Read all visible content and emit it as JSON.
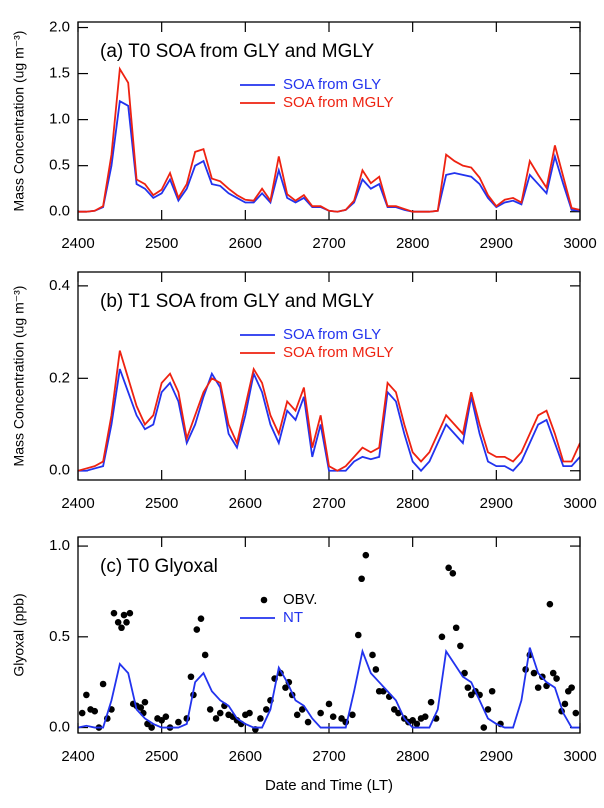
{
  "chart_data": [
    {
      "type": "line",
      "title": "(a) T0 SOA from GLY and MGLY",
      "ylabel": "Mass Concentration (ug m⁻³)",
      "xlim": [
        2400,
        3000
      ],
      "xticks": [
        2400,
        2500,
        2600,
        2700,
        2800,
        2900,
        3000
      ],
      "ylim": [
        -0.09,
        2.06
      ],
      "yticks": [
        {
          "value": 0,
          "label": "0.0"
        },
        0.5,
        {
          "value": 1,
          "label": "1.0"
        },
        1.5,
        {
          "value": 2,
          "label": "2.0"
        }
      ],
      "x": [
        2400,
        2410,
        2420,
        2430,
        2440,
        2450,
        2460,
        2470,
        2480,
        2490,
        2500,
        2510,
        2520,
        2530,
        2540,
        2550,
        2560,
        2570,
        2580,
        2590,
        2600,
        2610,
        2620,
        2630,
        2640,
        2650,
        2660,
        2670,
        2680,
        2690,
        2700,
        2710,
        2720,
        2730,
        2740,
        2750,
        2760,
        2770,
        2780,
        2790,
        2800,
        2810,
        2820,
        2830,
        2840,
        2850,
        2860,
        2870,
        2880,
        2890,
        2900,
        2910,
        2920,
        2930,
        2940,
        2950,
        2960,
        2970,
        2980,
        2990,
        3000
      ],
      "series": [
        {
          "name": "SOA from GLY",
          "color": "#2233ee",
          "values": [
            0,
            0,
            0.01,
            0.05,
            0.5,
            1.2,
            1.15,
            0.3,
            0.25,
            0.15,
            0.2,
            0.35,
            0.12,
            0.25,
            0.5,
            0.55,
            0.3,
            0.28,
            0.2,
            0.15,
            0.1,
            0.1,
            0.2,
            0.1,
            0.45,
            0.15,
            0.1,
            0.15,
            0.05,
            0.05,
            0.01,
            0,
            0.02,
            0.1,
            0.35,
            0.25,
            0.3,
            0.05,
            0.05,
            0.02,
            0,
            0,
            0,
            0.01,
            0.4,
            0.42,
            0.4,
            0.38,
            0.3,
            0.15,
            0.05,
            0.1,
            0.12,
            0.08,
            0.4,
            0.3,
            0.2,
            0.6,
            0.3,
            0.02,
            0.01
          ]
        },
        {
          "name": "SOA from MGLY",
          "color": "#ee2211",
          "values": [
            0,
            0,
            0.01,
            0.06,
            0.62,
            1.55,
            1.4,
            0.35,
            0.3,
            0.18,
            0.24,
            0.42,
            0.15,
            0.3,
            0.65,
            0.68,
            0.36,
            0.33,
            0.25,
            0.18,
            0.13,
            0.12,
            0.25,
            0.12,
            0.6,
            0.19,
            0.12,
            0.18,
            0.06,
            0.06,
            0.01,
            0,
            0.02,
            0.12,
            0.45,
            0.31,
            0.38,
            0.06,
            0.06,
            0.03,
            0,
            0,
            0,
            0.01,
            0.62,
            0.55,
            0.5,
            0.48,
            0.37,
            0.18,
            0.06,
            0.13,
            0.15,
            0.1,
            0.55,
            0.4,
            0.26,
            0.72,
            0.38,
            0.04,
            0.02
          ]
        }
      ]
    },
    {
      "type": "line",
      "title": "(b) T1 SOA from GLY and MGLY",
      "ylabel": "Mass Concentration (ug m⁻³)",
      "xlim": [
        2400,
        3000
      ],
      "xticks": [
        2400,
        2500,
        2600,
        2700,
        2800,
        2900,
        3000
      ],
      "ylim": [
        -0.02,
        0.43
      ],
      "yticks": [
        {
          "value": 0,
          "label": "0.0"
        },
        0.2,
        0.4
      ],
      "x": [
        2400,
        2410,
        2420,
        2430,
        2440,
        2450,
        2460,
        2470,
        2480,
        2490,
        2500,
        2510,
        2520,
        2530,
        2540,
        2550,
        2560,
        2570,
        2580,
        2590,
        2600,
        2610,
        2620,
        2630,
        2640,
        2650,
        2660,
        2670,
        2680,
        2690,
        2700,
        2710,
        2720,
        2730,
        2740,
        2750,
        2760,
        2770,
        2780,
        2790,
        2800,
        2810,
        2820,
        2830,
        2840,
        2850,
        2860,
        2870,
        2880,
        2890,
        2900,
        2910,
        2920,
        2930,
        2940,
        2950,
        2960,
        2970,
        2980,
        2990,
        3000
      ],
      "series": [
        {
          "name": "SOA from GLY",
          "color": "#2233ee",
          "values": [
            0,
            0,
            0.005,
            0.01,
            0.1,
            0.22,
            0.17,
            0.12,
            0.09,
            0.1,
            0.17,
            0.19,
            0.15,
            0.06,
            0.1,
            0.16,
            0.21,
            0.18,
            0.08,
            0.05,
            0.12,
            0.21,
            0.17,
            0.1,
            0.06,
            0.13,
            0.11,
            0.16,
            0.03,
            0.1,
            0,
            0,
            0,
            0.02,
            0.03,
            0.025,
            0.03,
            0.17,
            0.15,
            0.08,
            0.02,
            0,
            0.02,
            0.06,
            0.1,
            0.08,
            0.06,
            0.16,
            0.08,
            0.02,
            0.01,
            0.01,
            0,
            0.02,
            0.06,
            0.1,
            0.11,
            0.06,
            0.01,
            0.01,
            0.03
          ]
        },
        {
          "name": "SOA from MGLY",
          "color": "#ee2211",
          "values": [
            0,
            0.005,
            0.01,
            0.02,
            0.12,
            0.26,
            0.2,
            0.14,
            0.1,
            0.12,
            0.19,
            0.21,
            0.17,
            0.07,
            0.12,
            0.17,
            0.2,
            0.19,
            0.1,
            0.06,
            0.14,
            0.22,
            0.19,
            0.12,
            0.08,
            0.15,
            0.13,
            0.18,
            0.05,
            0.12,
            0.01,
            0,
            0.01,
            0.03,
            0.05,
            0.04,
            0.05,
            0.19,
            0.17,
            0.1,
            0.04,
            0.02,
            0.04,
            0.08,
            0.12,
            0.1,
            0.08,
            0.17,
            0.1,
            0.04,
            0.03,
            0.03,
            0.02,
            0.04,
            0.08,
            0.12,
            0.13,
            0.08,
            0.02,
            0.02,
            0.06
          ]
        }
      ]
    },
    {
      "type": "line",
      "title": "(c) T0 Glyoxal",
      "ylabel": "Glyoxal (ppb)",
      "xlabel": "Date and Time (LT)",
      "xlim": [
        2400,
        3000
      ],
      "xticks": [
        2400,
        2500,
        2600,
        2700,
        2800,
        2900,
        3000
      ],
      "ylim": [
        -0.03,
        1.05
      ],
      "yticks": [
        {
          "value": 0,
          "label": "0.0"
        },
        0.5,
        {
          "value": 1,
          "label": "1.0"
        }
      ],
      "x": [
        2400,
        2410,
        2420,
        2430,
        2440,
        2450,
        2460,
        2470,
        2480,
        2490,
        2500,
        2510,
        2520,
        2530,
        2540,
        2550,
        2560,
        2570,
        2580,
        2590,
        2600,
        2610,
        2620,
        2630,
        2640,
        2650,
        2660,
        2670,
        2680,
        2690,
        2700,
        2710,
        2720,
        2730,
        2740,
        2750,
        2760,
        2770,
        2780,
        2790,
        2800,
        2810,
        2820,
        2830,
        2840,
        2850,
        2860,
        2870,
        2880,
        2890,
        2900,
        2910,
        2920,
        2930,
        2940,
        2950,
        2960,
        2970,
        2980,
        2990,
        3000
      ],
      "series": [
        {
          "name": "OBV.",
          "color": "#000000",
          "style": "dot",
          "x": [
            2405,
            2410,
            2415,
            2420,
            2425,
            2430,
            2435,
            2440,
            2443,
            2448,
            2452,
            2455,
            2458,
            2462,
            2466,
            2470,
            2475,
            2478,
            2480,
            2483,
            2488,
            2495,
            2500,
            2505,
            2510,
            2520,
            2530,
            2535,
            2538,
            2542,
            2547,
            2552,
            2558,
            2565,
            2570,
            2575,
            2580,
            2585,
            2590,
            2595,
            2600,
            2605,
            2612,
            2618,
            2625,
            2630,
            2635,
            2642,
            2648,
            2652,
            2656,
            2662,
            2668,
            2675,
            2690,
            2700,
            2705,
            2715,
            2720,
            2728,
            2735,
            2739,
            2744,
            2752,
            2756,
            2760,
            2765,
            2772,
            2778,
            2783,
            2790,
            2795,
            2800,
            2805,
            2810,
            2815,
            2822,
            2828,
            2835,
            2843,
            2848,
            2852,
            2857,
            2862,
            2866,
            2870,
            2875,
            2880,
            2885,
            2890,
            2895,
            2905,
            2935,
            2940,
            2945,
            2950,
            2955,
            2960,
            2964,
            2968,
            2972,
            2978,
            2982,
            2986,
            2990,
            2995
          ],
          "values": [
            0.08,
            0.18,
            0.1,
            0.09,
            0,
            0.24,
            0.05,
            0.1,
            0.63,
            0.58,
            0.55,
            0.62,
            0.58,
            0.63,
            0.13,
            0.12,
            0.11,
            0.08,
            0.14,
            0.02,
            0,
            0.05,
            0.04,
            0.06,
            0,
            0.03,
            0.05,
            0.28,
            0.18,
            0.54,
            0.6,
            0.4,
            0.1,
            0.05,
            0.08,
            0.12,
            0.07,
            0.06,
            0.04,
            0.02,
            0.07,
            0.08,
            -0.01,
            0.05,
            0.1,
            0.15,
            0.27,
            0.3,
            0.22,
            0.25,
            0.18,
            0.07,
            0.1,
            0.03,
            0.08,
            0.13,
            0.06,
            0.05,
            0.03,
            0.07,
            0.51,
            0.82,
            0.95,
            0.4,
            0.32,
            0.2,
            0.2,
            0.17,
            0.1,
            0.08,
            0.05,
            0.03,
            0.04,
            0.02,
            0.05,
            0.06,
            0.14,
            0.05,
            0.5,
            0.88,
            0.85,
            0.55,
            0.45,
            0.3,
            0.22,
            0.18,
            0.2,
            0.18,
            0,
            0.1,
            0.2,
            0.02,
            0.32,
            0.4,
            0.3,
            0.22,
            0.28,
            0.23,
            0.68,
            0.3,
            0.27,
            0.09,
            0.13,
            0.2,
            0.22,
            0.08
          ]
        },
        {
          "name": "NT",
          "color": "#2233ee",
          "values": [
            0,
            0.01,
            0,
            0,
            0.15,
            0.35,
            0.3,
            0.1,
            0.05,
            0.02,
            0,
            0,
            0,
            0.02,
            0.25,
            0.3,
            0.2,
            0.15,
            0.12,
            0.05,
            0.02,
            0,
            0,
            0.1,
            0.33,
            0.25,
            0.15,
            0.12,
            0.05,
            0,
            0,
            0,
            0,
            0.2,
            0.42,
            0.3,
            0.25,
            0.2,
            0.15,
            0.05,
            0,
            0,
            0,
            0.1,
            0.42,
            0.35,
            0.28,
            0.25,
            0.15,
            0.05,
            0.02,
            0,
            0,
            0.15,
            0.44,
            0.3,
            0.25,
            0.22,
            0.08,
            0,
            0
          ]
        }
      ]
    }
  ]
}
